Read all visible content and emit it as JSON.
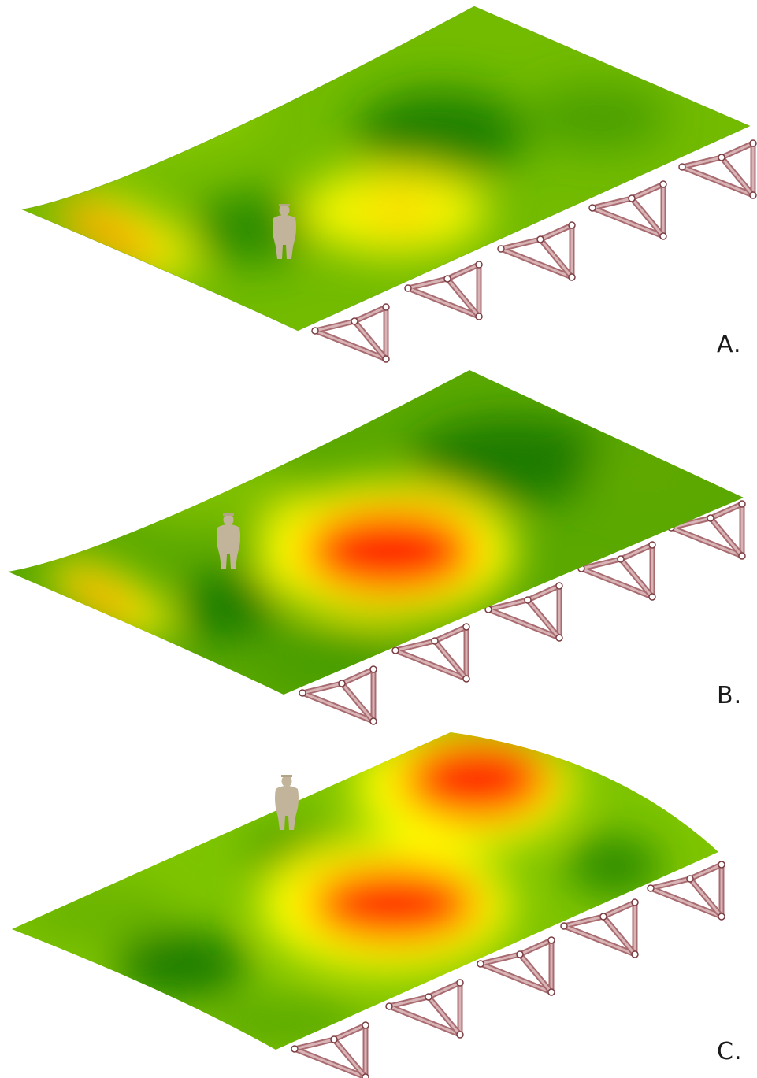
{
  "figure": {
    "panels": [
      {
        "id": "A",
        "label": "A."
      },
      {
        "id": "B",
        "label": "B."
      },
      {
        "id": "C",
        "label": "C."
      }
    ],
    "colors": {
      "heat_low": "#1e7e00",
      "heat_mid": "#7dc400",
      "heat_high": "#ffff00",
      "heat_peak": "#ff0000",
      "support_frame": "#b07a7e",
      "human_figure": "#c2b49a"
    }
  }
}
